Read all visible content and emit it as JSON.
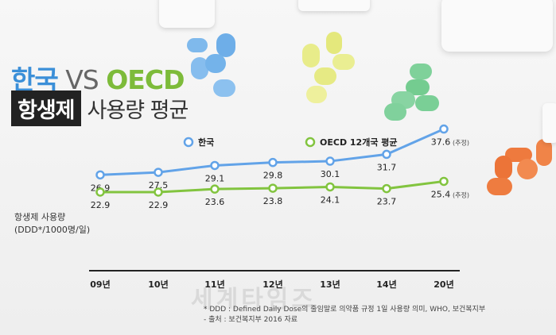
{
  "title": {
    "part1": "한국",
    "part2": " VS ",
    "part3": "OECD",
    "highlight": "항생제",
    "rest": "사용량 평균"
  },
  "ylabel": [
    "항생제 사용량",
    "(DDD*/1000명/일)"
  ],
  "notes": [
    "* DDD : Defined Daily Dose의 줄임말로 의약품 규정 1일 사용량 의미, WHO, 보건복지부",
    "- 출처 : 보건복지부 2016 자료"
  ],
  "watermark": "세계타임즈",
  "colors": {
    "korea": "#62a3e8",
    "oecd": "#82c43f",
    "text": "#222222"
  },
  "chart_data": {
    "type": "line",
    "categories": [
      "09년",
      "10년",
      "11년",
      "12년",
      "13년",
      "14년",
      "20년"
    ],
    "ylim": [
      20,
      40
    ],
    "series": [
      {
        "name": "한국",
        "values": [
          26.9,
          27.5,
          29.1,
          29.8,
          30.1,
          31.7,
          37.6
        ],
        "labels": [
          "26.9",
          "27.5",
          "29.1",
          "29.8",
          "30.1",
          "31.7",
          "37.6"
        ]
      },
      {
        "name": "OECD 12개국 평균",
        "values": [
          22.9,
          22.9,
          23.6,
          23.8,
          24.1,
          23.7,
          25.4
        ],
        "labels": [
          "22.9",
          "22.9",
          "23.6",
          "23.8",
          "24.1",
          "23.7",
          "25.4"
        ]
      }
    ],
    "annotation": "(추정)",
    "legend": "top"
  }
}
